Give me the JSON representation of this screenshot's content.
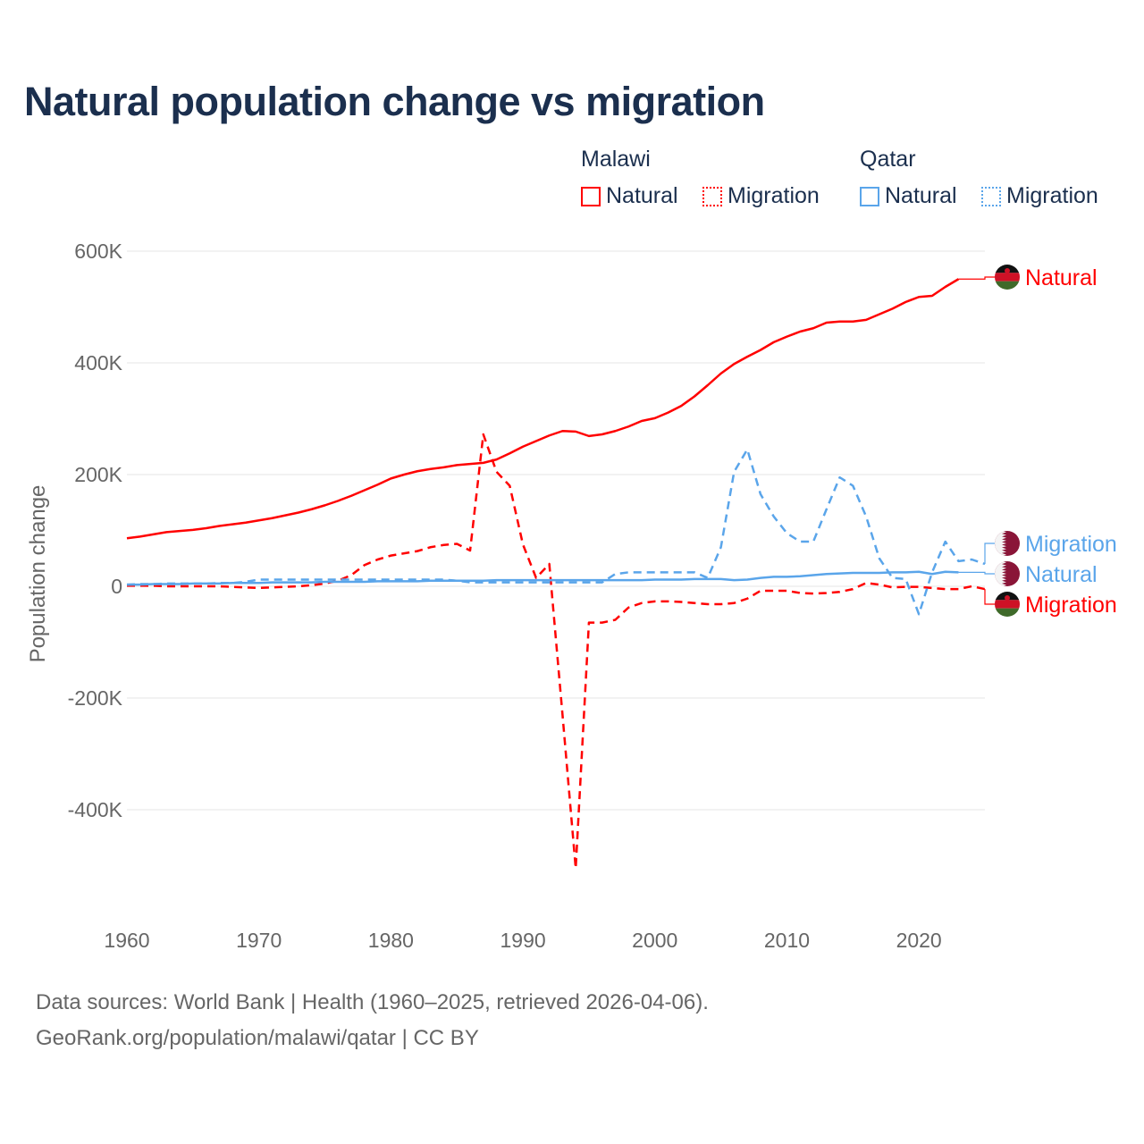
{
  "title": "Natural population change vs migration",
  "legend": {
    "groups": [
      {
        "name": "Malawi",
        "items": [
          "Natural",
          "Migration"
        ]
      },
      {
        "name": "Qatar",
        "items": [
          "Natural",
          "Migration"
        ]
      }
    ]
  },
  "colors": {
    "malawi": "#ff0000",
    "qatar": "#5aa5ea",
    "text": "#1b2f4e",
    "grid": "#e6e6e6",
    "axis": "#666666"
  },
  "footer": {
    "line1": "Data sources: World Bank | Health (1960–2025, retrieved 2026-04-06).",
    "line2": "GeoRank.org/population/malawi/qatar | CC BY"
  },
  "chart_data": {
    "type": "line",
    "title": "Natural population change vs migration",
    "xlabel": "",
    "ylabel": "Population change",
    "xlim": [
      1960,
      2025
    ],
    "ylim": [
      -500000,
      600000
    ],
    "x_ticks": [
      1960,
      1970,
      1980,
      1990,
      2000,
      2010,
      2020
    ],
    "x_tick_labels": [
      "1960",
      "1970",
      "1980",
      "1990",
      "2000",
      "2010",
      "2020"
    ],
    "y_ticks": [
      600000,
      400000,
      200000,
      0,
      -200000,
      -400000
    ],
    "y_tick_labels": [
      "600K",
      "400K",
      "200K",
      "0",
      "-200K",
      "-400K"
    ],
    "grid": true,
    "series": [
      {
        "name": "Malawi Natural",
        "label": "Natural",
        "country": "Malawi",
        "color": "#ff0000",
        "dash": false,
        "start": 1960,
        "values": [
          86000,
          89000,
          93000,
          97000,
          99000,
          101000,
          104000,
          108000,
          111000,
          114000,
          118000,
          122000,
          127000,
          132000,
          138000,
          145000,
          153000,
          162000,
          172000,
          182000,
          193000,
          200000,
          206000,
          210000,
          213000,
          217000,
          219000,
          221000,
          227000,
          238000,
          250000,
          260000,
          270000,
          278000,
          277000,
          269000,
          272000,
          278000,
          286000,
          296000,
          301000,
          311000,
          323000,
          340000,
          360000,
          381000,
          398000,
          411000,
          423000,
          437000,
          447000,
          456000,
          462000,
          472000,
          474000,
          474000,
          477000,
          487000,
          497000,
          509000,
          518000,
          520000,
          536000,
          550000
        ]
      },
      {
        "name": "Malawi Migration",
        "label": "Migration",
        "country": "Malawi",
        "color": "#ff0000",
        "dash": true,
        "start": 1960,
        "values": [
          1000,
          1000,
          1000,
          0,
          0,
          0,
          0,
          0,
          -1000,
          -2000,
          -3000,
          -2000,
          -1000,
          0,
          2000,
          5000,
          10000,
          20000,
          38000,
          48000,
          55000,
          59000,
          63000,
          70000,
          74000,
          76000,
          64000,
          272000,
          205000,
          180000,
          75000,
          15000,
          40000,
          -230000,
          -505000,
          -65000,
          -65000,
          -60000,
          -38000,
          -30000,
          -27000,
          -27000,
          -28000,
          -30000,
          -32000,
          -32000,
          -30000,
          -22000,
          -8000,
          -8000,
          -8000,
          -12000,
          -13000,
          -12000,
          -10000,
          -5000,
          6000,
          3000,
          -2000,
          -1000,
          -1000,
          -3000,
          -5000,
          -5000,
          0,
          -5000
        ]
      },
      {
        "name": "Qatar Natural",
        "label": "Natural",
        "country": "Qatar",
        "color": "#5aa5ea",
        "dash": false,
        "start": 1960,
        "values": [
          3000,
          3000,
          4000,
          4000,
          4000,
          5000,
          5000,
          5000,
          6000,
          6000,
          6000,
          7000,
          7000,
          7000,
          7000,
          8000,
          8000,
          8000,
          8000,
          9000,
          9000,
          9000,
          9000,
          10000,
          10000,
          10000,
          10000,
          10000,
          11000,
          11000,
          11000,
          11000,
          11000,
          11000,
          11000,
          11000,
          11000,
          11000,
          11000,
          11000,
          12000,
          12000,
          12000,
          13000,
          13000,
          13000,
          11000,
          12000,
          15000,
          17000,
          17000,
          18000,
          20000,
          22000,
          23000,
          24000,
          24000,
          24000,
          25000,
          25000,
          26000,
          22000,
          26000,
          25000
        ]
      },
      {
        "name": "Qatar Migration",
        "label": "Migration",
        "country": "Qatar",
        "color": "#5aa5ea",
        "dash": true,
        "start": 1960,
        "values": [
          3000,
          4000,
          4000,
          5000,
          5000,
          5000,
          5000,
          6000,
          6000,
          8000,
          12000,
          12000,
          12000,
          12000,
          12000,
          12000,
          12000,
          12000,
          12000,
          12000,
          12000,
          12000,
          12000,
          12000,
          12000,
          10000,
          7000,
          7000,
          7000,
          7000,
          7000,
          7000,
          7000,
          7000,
          7000,
          7000,
          7000,
          22000,
          25000,
          25000,
          25000,
          25000,
          25000,
          25000,
          15000,
          70000,
          205000,
          245000,
          165000,
          125000,
          95000,
          80000,
          80000,
          138000,
          195000,
          180000,
          125000,
          50000,
          15000,
          13000,
          -50000,
          25000,
          80000,
          45000,
          48000,
          40000
        ]
      }
    ],
    "end_labels": [
      {
        "series": "Malawi Natural",
        "text": "Natural",
        "flag": "malawi-flag"
      },
      {
        "series": "Qatar Migration",
        "text": "Migration",
        "flag": "qatar-flag"
      },
      {
        "series": "Qatar Natural",
        "text": "Natural",
        "flag": "qatar-flag"
      },
      {
        "series": "Malawi Migration",
        "text": "Migration",
        "flag": "malawi-flag"
      }
    ]
  }
}
